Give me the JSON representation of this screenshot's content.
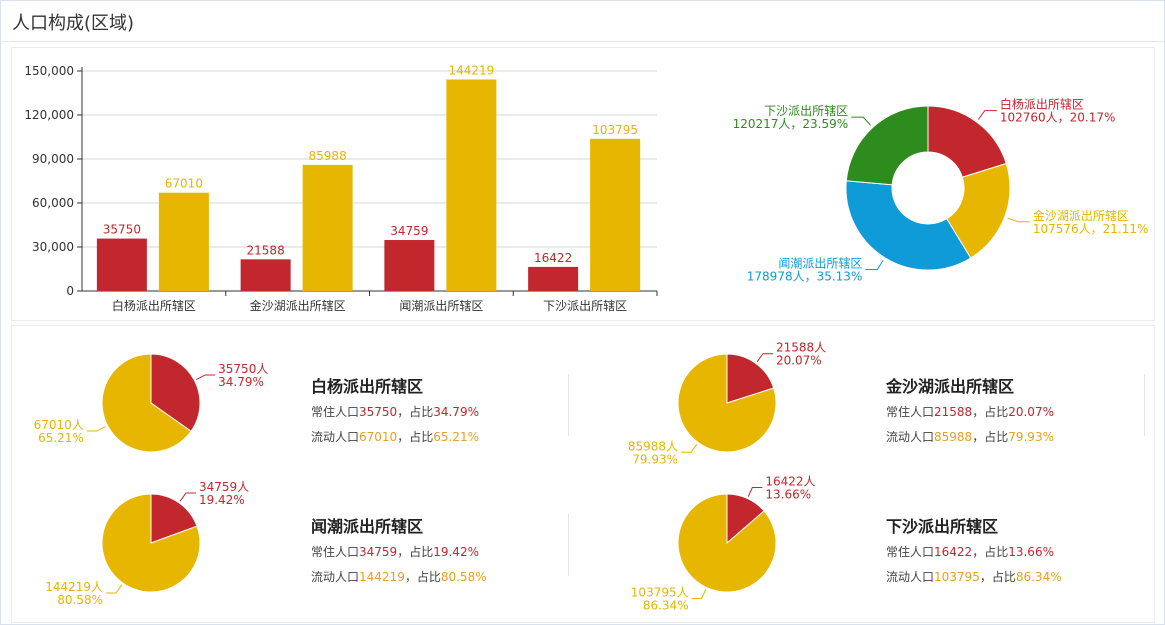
{
  "page": {
    "title": "人口构成(区域)"
  },
  "colors": {
    "resident": "#c1272d",
    "floating": "#e6b600",
    "green": "#2e8b1e",
    "blue": "#0f9ad8"
  },
  "bar_chart": {
    "chart_data": {
      "type": "bar",
      "categories": [
        "白杨派出所辖区",
        "金沙湖派出所辖区",
        "闻潮派出所辖区",
        "下沙派出所辖区"
      ],
      "series": [
        {
          "values": [
            35750,
            21588,
            34759,
            16422
          ]
        },
        {
          "values": [
            67010,
            85988,
            144219,
            103795
          ]
        }
      ],
      "data_labels": [
        [
          "35750",
          "21588",
          "34759",
          "16422"
        ],
        [
          "67010",
          "85988",
          "144219",
          "103795"
        ]
      ],
      "yticks": [
        "0",
        "30,000",
        "60,000",
        "90,000",
        "120,000",
        "150,000"
      ],
      "ylim": [
        0,
        150000
      ],
      "grid": true
    }
  },
  "donut_chart": {
    "chart_data": {
      "type": "pie",
      "slices": [
        {
          "name": "白杨派出所辖区",
          "value": 102760,
          "label": "102760人，20.17%",
          "color": "#c1272d"
        },
        {
          "name": "金沙湖派出所辖区",
          "value": 107576,
          "label": "107576人，21.11%",
          "color": "#e6b600"
        },
        {
          "name": "闻潮派出所辖区",
          "value": 178978,
          "label": "178978人，35.13%",
          "color": "#0f9ad8"
        },
        {
          "name": "下沙派出所辖区",
          "value": 120217,
          "label": "120217人，23.59%",
          "color": "#2e8b1e"
        }
      ]
    }
  },
  "districts": [
    {
      "name": "白杨派出所辖区",
      "resident_line": {
        "prefix": "常住人口",
        "value": "35750",
        "mid": "，占比",
        "pct": "34.79%"
      },
      "floating_line": {
        "prefix": "流动人口",
        "value": "67010",
        "mid": "，占比",
        "pct": "65.21%"
      },
      "chart_data": {
        "type": "pie",
        "values": [
          35750,
          67010
        ],
        "labels": [
          [
            "35750人",
            "34.79%"
          ],
          [
            "67010人",
            "65.21%"
          ]
        ]
      }
    },
    {
      "name": "金沙湖派出所辖区",
      "resident_line": {
        "prefix": "常住人口",
        "value": "21588",
        "mid": "，占比",
        "pct": "20.07%"
      },
      "floating_line": {
        "prefix": "流动人口",
        "value": "85988",
        "mid": "，占比",
        "pct": "79.93%"
      },
      "chart_data": {
        "type": "pie",
        "values": [
          21588,
          85988
        ],
        "labels": [
          [
            "21588人",
            "20.07%"
          ],
          [
            "85988人",
            "79.93%"
          ]
        ]
      }
    },
    {
      "name": "闻潮派出所辖区",
      "resident_line": {
        "prefix": "常住人口",
        "value": "34759",
        "mid": "，占比",
        "pct": "19.42%"
      },
      "floating_line": {
        "prefix": "流动人口",
        "value": "144219",
        "mid": "，占比",
        "pct": "80.58%"
      },
      "chart_data": {
        "type": "pie",
        "values": [
          34759,
          144219
        ],
        "labels": [
          [
            "34759人",
            "19.42%"
          ],
          [
            "144219人",
            "80.58%"
          ]
        ]
      }
    },
    {
      "name": "下沙派出所辖区",
      "resident_line": {
        "prefix": "常住人口",
        "value": "16422",
        "mid": "，占比",
        "pct": "13.66%"
      },
      "floating_line": {
        "prefix": "流动人口",
        "value": "103795",
        "mid": "，占比",
        "pct": "86.34%"
      },
      "chart_data": {
        "type": "pie",
        "values": [
          16422,
          103795
        ],
        "labels": [
          [
            "16422人",
            "13.66%"
          ],
          [
            "103795人",
            "86.34%"
          ]
        ]
      }
    }
  ]
}
